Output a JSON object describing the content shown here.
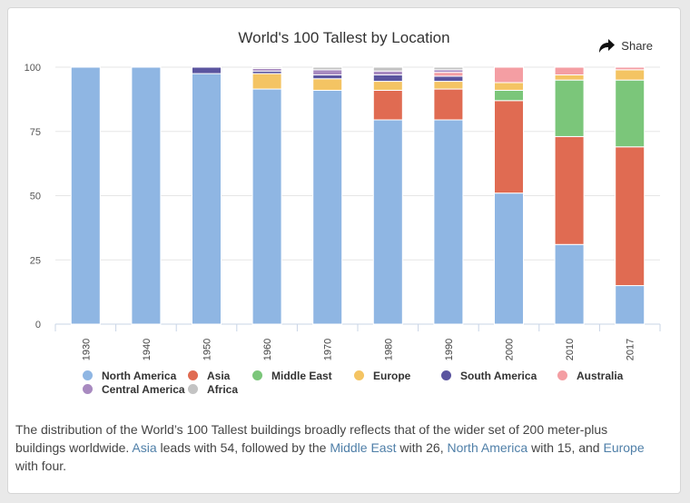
{
  "share": {
    "label": "Share",
    "icon": "share-arrow-icon"
  },
  "chart_data": {
    "type": "bar",
    "stacked": true,
    "title": "World's 100 Tallest by Location",
    "xlabel": "",
    "ylabel": "",
    "ylim": [
      0,
      100
    ],
    "yticks": [
      "0",
      "25",
      "50",
      "75",
      "100"
    ],
    "grid": true,
    "legend_position": "bottom",
    "categories": [
      "1930",
      "1940",
      "1950",
      "1960",
      "1970",
      "1980",
      "1990",
      "2000",
      "2010",
      "2017"
    ],
    "series": [
      {
        "name": "North America",
        "color": "#8fb6e3",
        "values": [
          100,
          100,
          97.5,
          91.5,
          91,
          79.5,
          79.5,
          51,
          31,
          15
        ]
      },
      {
        "name": "Asia",
        "color": "#e06b52",
        "values": [
          0,
          0,
          0,
          0,
          0,
          11.5,
          12,
          36,
          42,
          54
        ]
      },
      {
        "name": "Middle East",
        "color": "#7bc67a",
        "values": [
          0,
          0,
          0,
          0,
          0,
          0,
          0,
          4,
          22,
          26
        ]
      },
      {
        "name": "Europe",
        "color": "#f4c463",
        "values": [
          0,
          0,
          0,
          6,
          4.5,
          3.5,
          3,
          3,
          2,
          4
        ]
      },
      {
        "name": "South America",
        "color": "#5b559f",
        "values": [
          0,
          0,
          2.5,
          1,
          1.5,
          2.5,
          2,
          0,
          0,
          0
        ]
      },
      {
        "name": "Australia",
        "color": "#f49ea3",
        "values": [
          0,
          0,
          0,
          0,
          0,
          0,
          1.5,
          6,
          3,
          1
        ]
      },
      {
        "name": "Central America",
        "color": "#a88ac0",
        "values": [
          0,
          0,
          0,
          1,
          2,
          1.5,
          1,
          0,
          0,
          0
        ]
      },
      {
        "name": "Africa",
        "color": "#c3c3c3",
        "values": [
          0,
          0,
          0,
          0.5,
          1,
          1.5,
          1,
          0,
          0,
          0
        ]
      }
    ]
  },
  "description": {
    "p1": "The distribution of the World’s 100 Tallest buildings broadly reflects that of the wider set of 200 meter-plus buildings worldwide. ",
    "link_asia": "Asia",
    "p2": " leads with 54, followed by the ",
    "link_middle_east": "Middle East",
    "p3": " with 26, ",
    "link_north_america": "North America",
    "p4": " with 15, and ",
    "link_europe": "Europe",
    "p5": " with four."
  }
}
